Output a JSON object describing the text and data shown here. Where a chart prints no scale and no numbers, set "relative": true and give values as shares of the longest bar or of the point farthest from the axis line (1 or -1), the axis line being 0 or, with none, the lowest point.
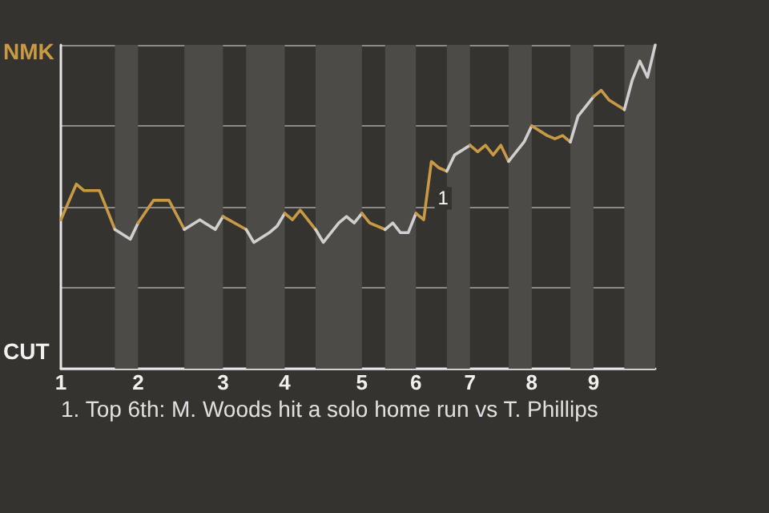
{
  "chart_data": {
    "type": "line",
    "relative": true,
    "annotations": [
      "NMK",
      "CUT",
      "1",
      "1. Top 6th: M. Woods hit a solo home run vs T. Phillips"
    ],
    "categories": [
      "1",
      null,
      null,
      null,
      null,
      null,
      null,
      null,
      null,
      null,
      "2",
      null,
      null,
      null,
      null,
      null,
      null,
      null,
      null,
      null,
      null,
      "3",
      null,
      null,
      null,
      null,
      null,
      null,
      null,
      "4",
      null,
      null,
      null,
      null,
      null,
      null,
      null,
      null,
      null,
      "5",
      null,
      null,
      null,
      null,
      null,
      null,
      "6",
      null,
      null,
      null,
      null,
      null,
      null,
      "7",
      null,
      null,
      null,
      null,
      null,
      null,
      null,
      "8",
      null,
      null,
      null,
      null,
      null,
      null,
      null,
      "9",
      null,
      null,
      null,
      null,
      null,
      null,
      null,
      null
    ],
    "grid": "y",
    "marker": "none",
    "line_style": "solid",
    "series": [
      {
        "color": "#c89a45",
        "values": [
          0.46,
          null,
          0.57,
          0.55,
          null,
          0.55,
          null,
          0.43,
          null,
          null,
          null,
          null,
          null,
          null,
          null,
          null,
          null,
          null,
          null,
          null,
          null,
          null,
          null,
          null,
          null,
          null,
          null,
          null,
          null,
          null,
          null,
          null,
          null,
          null,
          null,
          null,
          null,
          null,
          null,
          null,
          null,
          null,
          null,
          null,
          null,
          null,
          null,
          null,
          null,
          null,
          null,
          null,
          null,
          null,
          null,
          null,
          null,
          null,
          null,
          null,
          null,
          null,
          null,
          null,
          null,
          null,
          null,
          null,
          null,
          null,
          null,
          null,
          null,
          null,
          null,
          null,
          null,
          null
        ]
      },
      {
        "color": "#cfcfcf",
        "values": [
          null,
          null,
          null,
          null,
          null,
          null,
          null,
          0.43,
          null,
          0.4,
          0.45,
          null,
          null,
          null,
          null,
          null,
          null,
          null,
          null,
          null,
          null,
          null,
          null,
          null,
          null,
          null,
          null,
          null,
          null,
          null,
          null,
          null,
          null,
          null,
          null,
          null,
          null,
          null,
          null,
          null,
          null,
          null,
          null,
          null,
          null,
          null,
          null,
          null,
          null,
          null,
          null,
          null,
          null,
          null,
          null,
          null,
          null,
          null,
          null,
          null,
          null,
          null,
          null,
          null,
          null,
          null,
          null,
          null,
          null,
          null,
          null,
          null,
          null,
          null,
          null,
          null,
          null,
          null
        ]
      },
      {
        "color": "#c89a45",
        "values": [
          null,
          null,
          null,
          null,
          null,
          null,
          null,
          null,
          null,
          null,
          0.45,
          null,
          0.52,
          null,
          0.52,
          null,
          0.43,
          null,
          null,
          null,
          null,
          null,
          null,
          null,
          null,
          null,
          null,
          null,
          null,
          null,
          null,
          null,
          null,
          null,
          null,
          null,
          null,
          null,
          null,
          null,
          null,
          null,
          null,
          null,
          null,
          null,
          null,
          null,
          null,
          null,
          null,
          null,
          null,
          null,
          null,
          null,
          null,
          null,
          null,
          null,
          null,
          null,
          null,
          null,
          null,
          null,
          null,
          null,
          null,
          null,
          null,
          null,
          null,
          null,
          null,
          null,
          null,
          null
        ]
      },
      {
        "color": "#cfcfcf",
        "values": [
          null,
          null,
          null,
          null,
          null,
          null,
          null,
          null,
          null,
          null,
          null,
          null,
          null,
          null,
          null,
          null,
          0.43,
          null,
          0.46,
          null,
          0.43,
          0.47,
          null,
          null,
          null,
          null,
          null,
          null,
          null,
          null,
          null,
          null,
          null,
          null,
          null,
          null,
          null,
          null,
          null,
          null,
          null,
          null,
          null,
          null,
          null,
          null,
          null,
          null,
          null,
          null,
          null,
          null,
          null,
          null,
          null,
          null,
          null,
          null,
          null,
          null,
          null,
          null,
          null,
          null,
          null,
          null,
          null,
          null,
          null,
          null,
          null,
          null,
          null,
          null,
          null,
          null,
          null,
          null
        ]
      },
      {
        "color": "#c89a45",
        "values": [
          null,
          null,
          null,
          null,
          null,
          null,
          null,
          null,
          null,
          null,
          null,
          null,
          null,
          null,
          null,
          null,
          null,
          null,
          null,
          null,
          null,
          0.47,
          null,
          null,
          0.43,
          null,
          null,
          null,
          null,
          null,
          null,
          null,
          null,
          null,
          null,
          null,
          null,
          null,
          null,
          null,
          null,
          null,
          null,
          null,
          null,
          null,
          null,
          null,
          null,
          null,
          null,
          null,
          null,
          null,
          null,
          null,
          null,
          null,
          null,
          null,
          null,
          null,
          null,
          null,
          null,
          null,
          null,
          null,
          null,
          null,
          null,
          null,
          null,
          null,
          null,
          null,
          null,
          null
        ]
      },
      {
        "color": "#cfcfcf",
        "values": [
          null,
          null,
          null,
          null,
          null,
          null,
          null,
          null,
          null,
          null,
          null,
          null,
          null,
          null,
          null,
          null,
          null,
          null,
          null,
          null,
          null,
          null,
          null,
          null,
          0.43,
          0.39,
          null,
          0.42,
          0.44,
          0.48,
          null,
          null,
          null,
          null,
          null,
          null,
          null,
          null,
          null,
          null,
          null,
          null,
          null,
          null,
          null,
          null,
          null,
          null,
          null,
          null,
          null,
          null,
          null,
          null,
          null,
          null,
          null,
          null,
          null,
          null,
          null,
          null,
          null,
          null,
          null,
          null,
          null,
          null,
          null,
          null,
          null,
          null,
          null,
          null,
          null,
          null,
          null,
          null
        ]
      },
      {
        "color": "#c89a45",
        "values": [
          null,
          null,
          null,
          null,
          null,
          null,
          null,
          null,
          null,
          null,
          null,
          null,
          null,
          null,
          null,
          null,
          null,
          null,
          null,
          null,
          null,
          null,
          null,
          null,
          null,
          null,
          null,
          null,
          null,
          0.48,
          0.46,
          0.49,
          null,
          0.43,
          null,
          null,
          null,
          null,
          null,
          null,
          null,
          null,
          null,
          null,
          null,
          null,
          null,
          null,
          null,
          null,
          null,
          null,
          null,
          null,
          null,
          null,
          null,
          null,
          null,
          null,
          null,
          null,
          null,
          null,
          null,
          null,
          null,
          null,
          null,
          null,
          null,
          null,
          null,
          null,
          null,
          null,
          null,
          null
        ]
      },
      {
        "color": "#cfcfcf",
        "values": [
          null,
          null,
          null,
          null,
          null,
          null,
          null,
          null,
          null,
          null,
          null,
          null,
          null,
          null,
          null,
          null,
          null,
          null,
          null,
          null,
          null,
          null,
          null,
          null,
          null,
          null,
          null,
          null,
          null,
          null,
          null,
          null,
          null,
          0.43,
          0.39,
          null,
          0.45,
          0.47,
          0.45,
          0.48,
          null,
          null,
          null,
          null,
          null,
          null,
          null,
          null,
          null,
          null,
          null,
          null,
          null,
          null,
          null,
          null,
          null,
          null,
          null,
          null,
          null,
          null,
          null,
          null,
          null,
          null,
          null,
          null,
          null,
          null,
          null,
          null,
          null,
          null,
          null,
          null,
          null,
          null
        ]
      },
      {
        "color": "#c89a45",
        "values": [
          null,
          null,
          null,
          null,
          null,
          null,
          null,
          null,
          null,
          null,
          null,
          null,
          null,
          null,
          null,
          null,
          null,
          null,
          null,
          null,
          null,
          null,
          null,
          null,
          null,
          null,
          null,
          null,
          null,
          null,
          null,
          null,
          null,
          null,
          null,
          null,
          null,
          null,
          null,
          0.48,
          0.45,
          null,
          0.43,
          null,
          null,
          null,
          null,
          null,
          null,
          null,
          null,
          null,
          null,
          null,
          null,
          null,
          null,
          null,
          null,
          null,
          null,
          null,
          null,
          null,
          null,
          null,
          null,
          null,
          null,
          null,
          null,
          null,
          null,
          null,
          null,
          null,
          null,
          null
        ]
      },
      {
        "color": "#cfcfcf",
        "values": [
          null,
          null,
          null,
          null,
          null,
          null,
          null,
          null,
          null,
          null,
          null,
          null,
          null,
          null,
          null,
          null,
          null,
          null,
          null,
          null,
          null,
          null,
          null,
          null,
          null,
          null,
          null,
          null,
          null,
          null,
          null,
          null,
          null,
          null,
          null,
          null,
          null,
          null,
          null,
          null,
          null,
          null,
          0.43,
          0.45,
          0.42,
          0.42,
          0.48,
          null,
          null,
          null,
          null,
          null,
          null,
          null,
          null,
          null,
          null,
          null,
          null,
          null,
          null,
          null,
          null,
          null,
          null,
          null,
          null,
          null,
          null,
          null,
          null,
          null,
          null,
          null,
          null,
          null,
          null,
          null
        ]
      },
      {
        "color": "#c89a45",
        "values": [
          null,
          null,
          null,
          null,
          null,
          null,
          null,
          null,
          null,
          null,
          null,
          null,
          null,
          null,
          null,
          null,
          null,
          null,
          null,
          null,
          null,
          null,
          null,
          null,
          null,
          null,
          null,
          null,
          null,
          null,
          null,
          null,
          null,
          null,
          null,
          null,
          null,
          null,
          null,
          null,
          null,
          null,
          null,
          null,
          null,
          null,
          0.48,
          0.46,
          0.64,
          0.62,
          0.61,
          null,
          null,
          null,
          null,
          null,
          null,
          null,
          null,
          null,
          null,
          null,
          null,
          null,
          null,
          null,
          null,
          null,
          null,
          null,
          null,
          null,
          null,
          null,
          null,
          null,
          null,
          null
        ]
      },
      {
        "color": "#cfcfcf",
        "values": [
          null,
          null,
          null,
          null,
          null,
          null,
          null,
          null,
          null,
          null,
          null,
          null,
          null,
          null,
          null,
          null,
          null,
          null,
          null,
          null,
          null,
          null,
          null,
          null,
          null,
          null,
          null,
          null,
          null,
          null,
          null,
          null,
          null,
          null,
          null,
          null,
          null,
          null,
          null,
          null,
          null,
          null,
          null,
          null,
          null,
          null,
          null,
          null,
          null,
          null,
          0.61,
          0.66,
          null,
          0.69,
          null,
          null,
          null,
          null,
          null,
          null,
          null,
          null,
          null,
          null,
          null,
          null,
          null,
          null,
          null,
          null,
          null,
          null,
          null,
          null,
          null,
          null,
          null,
          null
        ]
      },
      {
        "color": "#c89a45",
        "values": [
          null,
          null,
          null,
          null,
          null,
          null,
          null,
          null,
          null,
          null,
          null,
          null,
          null,
          null,
          null,
          null,
          null,
          null,
          null,
          null,
          null,
          null,
          null,
          null,
          null,
          null,
          null,
          null,
          null,
          null,
          null,
          null,
          null,
          null,
          null,
          null,
          null,
          null,
          null,
          null,
          null,
          null,
          null,
          null,
          null,
          null,
          null,
          null,
          null,
          null,
          null,
          null,
          null,
          0.69,
          0.67,
          0.69,
          0.66,
          0.69,
          0.64,
          null,
          null,
          null,
          null,
          null,
          null,
          null,
          null,
          null,
          null,
          null,
          null,
          null,
          null,
          null,
          null,
          null,
          null,
          null
        ]
      },
      {
        "color": "#cfcfcf",
        "values": [
          null,
          null,
          null,
          null,
          null,
          null,
          null,
          null,
          null,
          null,
          null,
          null,
          null,
          null,
          null,
          null,
          null,
          null,
          null,
          null,
          null,
          null,
          null,
          null,
          null,
          null,
          null,
          null,
          null,
          null,
          null,
          null,
          null,
          null,
          null,
          null,
          null,
          null,
          null,
          null,
          null,
          null,
          null,
          null,
          null,
          null,
          null,
          null,
          null,
          null,
          null,
          null,
          null,
          null,
          null,
          null,
          null,
          null,
          0.64,
          null,
          0.7,
          0.75,
          null,
          null,
          null,
          null,
          null,
          null,
          null,
          null,
          null,
          null,
          null,
          null,
          null,
          null,
          null,
          null
        ]
      },
      {
        "color": "#c89a45",
        "values": [
          null,
          null,
          null,
          null,
          null,
          null,
          null,
          null,
          null,
          null,
          null,
          null,
          null,
          null,
          null,
          null,
          null,
          null,
          null,
          null,
          null,
          null,
          null,
          null,
          null,
          null,
          null,
          null,
          null,
          null,
          null,
          null,
          null,
          null,
          null,
          null,
          null,
          null,
          null,
          null,
          null,
          null,
          null,
          null,
          null,
          null,
          null,
          null,
          null,
          null,
          null,
          null,
          null,
          null,
          null,
          null,
          null,
          null,
          null,
          null,
          null,
          0.75,
          null,
          0.72,
          0.71,
          0.72,
          0.7,
          null,
          null,
          null,
          null,
          null,
          null,
          null,
          null,
          null,
          null,
          null
        ]
      },
      {
        "color": "#cfcfcf",
        "values": [
          null,
          null,
          null,
          null,
          null,
          null,
          null,
          null,
          null,
          null,
          null,
          null,
          null,
          null,
          null,
          null,
          null,
          null,
          null,
          null,
          null,
          null,
          null,
          null,
          null,
          null,
          null,
          null,
          null,
          null,
          null,
          null,
          null,
          null,
          null,
          null,
          null,
          null,
          null,
          null,
          null,
          null,
          null,
          null,
          null,
          null,
          null,
          null,
          null,
          null,
          null,
          null,
          null,
          null,
          null,
          null,
          null,
          null,
          null,
          null,
          null,
          null,
          null,
          null,
          null,
          null,
          0.7,
          0.78,
          0.81,
          0.84,
          null,
          null,
          null,
          null,
          null,
          null,
          null,
          null
        ]
      },
      {
        "color": "#c89a45",
        "values": [
          null,
          null,
          null,
          null,
          null,
          null,
          null,
          null,
          null,
          null,
          null,
          null,
          null,
          null,
          null,
          null,
          null,
          null,
          null,
          null,
          null,
          null,
          null,
          null,
          null,
          null,
          null,
          null,
          null,
          null,
          null,
          null,
          null,
          null,
          null,
          null,
          null,
          null,
          null,
          null,
          null,
          null,
          null,
          null,
          null,
          null,
          null,
          null,
          null,
          null,
          null,
          null,
          null,
          null,
          null,
          null,
          null,
          null,
          null,
          null,
          null,
          null,
          null,
          null,
          null,
          null,
          null,
          null,
          null,
          0.84,
          0.86,
          0.83,
          null,
          0.8,
          null,
          null,
          null,
          null
        ]
      },
      {
        "color": "#cfcfcf",
        "values": [
          null,
          null,
          null,
          null,
          null,
          null,
          null,
          null,
          null,
          null,
          null,
          null,
          null,
          null,
          null,
          null,
          null,
          null,
          null,
          null,
          null,
          null,
          null,
          null,
          null,
          null,
          null,
          null,
          null,
          null,
          null,
          null,
          null,
          null,
          null,
          null,
          null,
          null,
          null,
          null,
          null,
          null,
          null,
          null,
          null,
          null,
          null,
          null,
          null,
          null,
          null,
          null,
          null,
          null,
          null,
          null,
          null,
          null,
          null,
          null,
          null,
          null,
          null,
          null,
          null,
          null,
          null,
          null,
          null,
          null,
          null,
          null,
          null,
          0.8,
          0.89,
          0.95,
          0.9,
          1.0
        ]
      }
    ]
  }
}
